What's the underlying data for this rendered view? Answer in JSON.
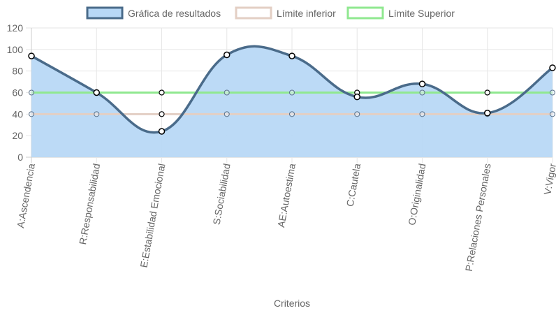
{
  "chart_data": {
    "type": "line",
    "title": "",
    "xlabel": "Criterios",
    "ylabel": "",
    "ylim": [
      0,
      120
    ],
    "yticks": [
      0,
      20,
      40,
      60,
      80,
      100,
      120
    ],
    "grid": true,
    "legend_position": "top-center",
    "categories": [
      "A:Ascendencia",
      "R:Responsabilidad",
      "E:Estabilidad Emocional",
      "S:Sociabilidad",
      "AE:Autoestima",
      "C:Cautela",
      "O:Originalidad",
      "P:Relaciones Personales",
      "V:Vigor"
    ],
    "series": [
      {
        "name": "Gráfica de resultados",
        "values": [
          94,
          60,
          24,
          95,
          94,
          56,
          68,
          41,
          83
        ],
        "color": "#4a6b8a",
        "fill": "#b8d8f6",
        "smooth": true
      },
      {
        "name": "Límite inferior",
        "values": [
          40,
          40,
          40,
          40,
          40,
          40,
          40,
          40,
          40
        ],
        "color": "#e3cfc4",
        "smooth": false
      },
      {
        "name": "Límite Superior",
        "values": [
          60,
          60,
          60,
          60,
          60,
          60,
          60,
          60,
          60
        ],
        "color": "#90e890",
        "smooth": false
      }
    ]
  }
}
